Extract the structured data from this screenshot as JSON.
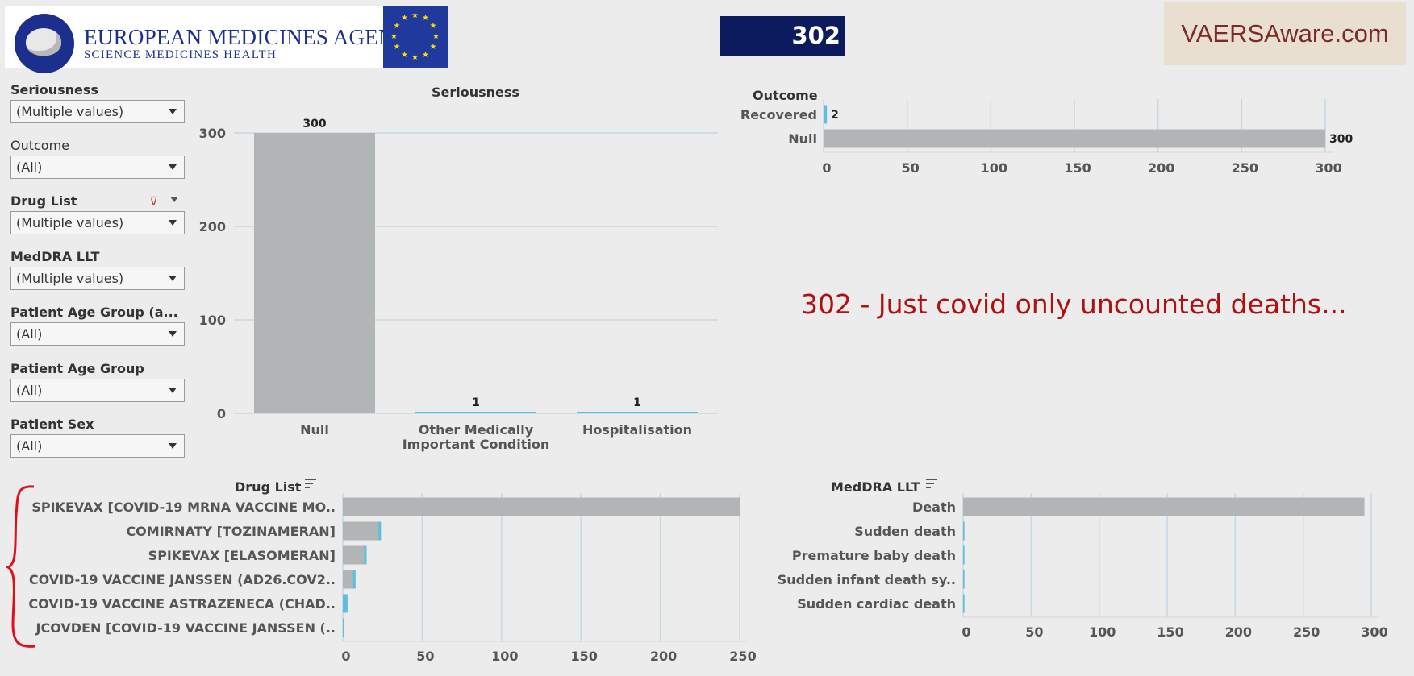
{
  "header": {
    "agency_name": "EUROPEAN MEDICINES AGENCY",
    "agency_tagline": "SCIENCE  MEDICINES  HEALTH",
    "counter": "302",
    "brand": "VAERSAware.com"
  },
  "filters": [
    {
      "label": "Seriousness",
      "value": "(Multiple values)",
      "bold": true
    },
    {
      "label": "Outcome",
      "value": "(All)",
      "bold": false
    },
    {
      "label": "Drug List",
      "value": "(Multiple values)",
      "bold": true
    },
    {
      "label": "MedDRA LLT",
      "value": "(Multiple values)",
      "bold": true
    },
    {
      "label": "Patient Age Group (a...",
      "value": "(All)",
      "bold": true
    },
    {
      "label": "Patient Age Group",
      "value": "(All)",
      "bold": true
    },
    {
      "label": "Patient Sex",
      "value": "(All)",
      "bold": true
    }
  ],
  "annotation": "302 - Just covid only uncounted deaths...",
  "colors": {
    "bar": "#b2b5b6",
    "accent": "#5bc0de",
    "grid": "#c5d8e4",
    "counter_bg": "#0c1b5e",
    "annotation": "#b01010"
  },
  "chart_data": [
    {
      "id": "seriousness",
      "type": "bar",
      "title": "Seriousness",
      "categories": [
        "Null",
        "Other Medically\nImportant Condition",
        "Hospitalisation"
      ],
      "values": [
        300,
        1,
        1
      ],
      "ylim": [
        0,
        300
      ],
      "yticks": [
        0,
        100,
        200,
        300
      ],
      "grid": true
    },
    {
      "id": "outcome",
      "type": "bar",
      "orientation": "horizontal",
      "title": "Outcome",
      "categories": [
        "Recovered",
        "Null"
      ],
      "values": [
        2,
        300
      ],
      "xlim": [
        0,
        300
      ],
      "xticks": [
        0,
        50,
        100,
        150,
        200,
        250,
        300
      ],
      "grid": true
    },
    {
      "id": "drug_list",
      "type": "bar",
      "orientation": "horizontal",
      "title": "Drug List",
      "categories": [
        "SPIKEVAX [COVID-19 MRNA VACCINE MO..",
        "COMIRNATY [TOZINAMERAN]",
        "SPIKEVAX [ELASOMERAN]",
        "COVID-19 VACCINE JANSSEN (AD26.COV2..",
        "COVID-19 VACCINE ASTRAZENECA (CHAD..",
        "JCOVDEN [COVID-19 VACCINE JANSSEN (.."
      ],
      "values": [
        250,
        24,
        15,
        8,
        3,
        1
      ],
      "xlim": [
        0,
        250
      ],
      "xticks": [
        0,
        50,
        100,
        150,
        200,
        250
      ],
      "grid": true
    },
    {
      "id": "meddra",
      "type": "bar",
      "orientation": "horizontal",
      "title": "MedDRA LLT",
      "categories": [
        "Death",
        "Sudden death",
        "Premature baby death",
        "Sudden infant death sy..",
        "Sudden cardiac death"
      ],
      "values": [
        295,
        1,
        1,
        1,
        1
      ],
      "xlim": [
        0,
        300
      ],
      "xticks": [
        0,
        50,
        100,
        150,
        200,
        250,
        300
      ],
      "grid": true
    }
  ]
}
